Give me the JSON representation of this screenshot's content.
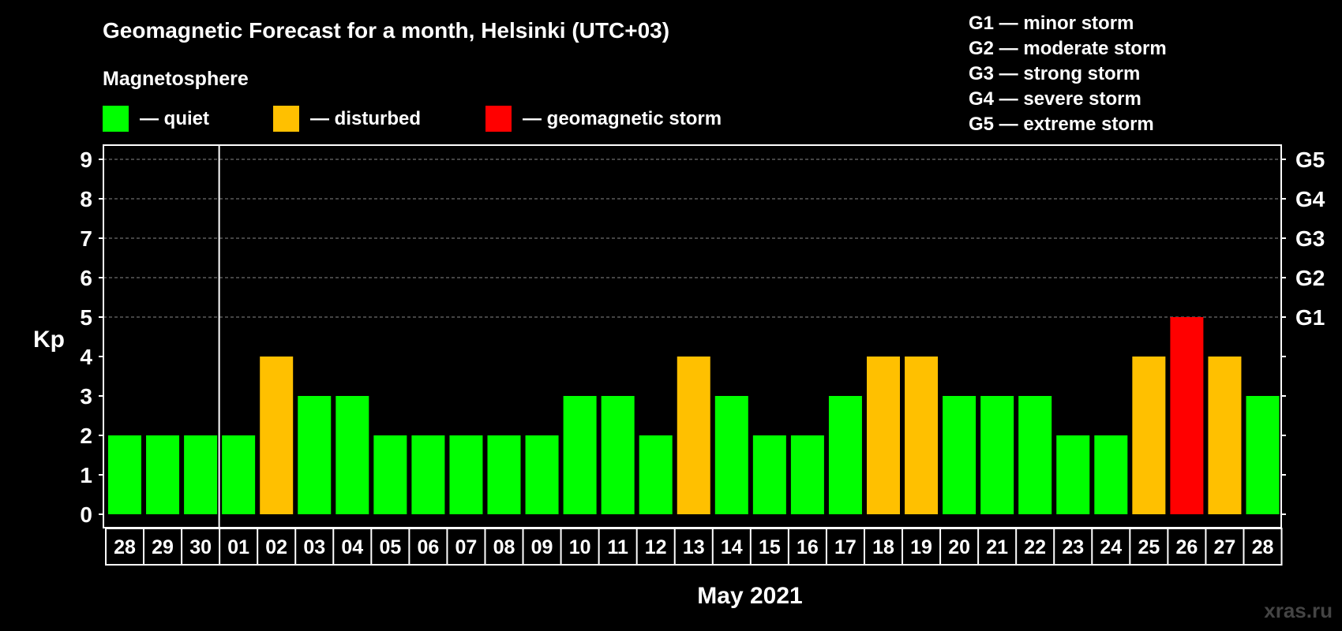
{
  "chart_data": {
    "type": "bar",
    "title": "Geomagnetic Forecast for a month, Helsinki (UTC+03)",
    "subtitle": "Magnetosphere",
    "legend": [
      {
        "label": "— quiet",
        "color": "#00ff00"
      },
      {
        "label": "— disturbed",
        "color": "#ffc000"
      },
      {
        "label": "— geomagnetic storm",
        "color": "#ff0000"
      }
    ],
    "storm_scale": [
      "G1 — minor storm",
      "G2 — moderate storm",
      "G3 — strong storm",
      "G4 — severe storm",
      "G5 — extreme storm"
    ],
    "ylabel": "Kp",
    "xlabel": "May 2021",
    "ylim": [
      0,
      9
    ],
    "yticks": [
      0,
      1,
      2,
      3,
      4,
      5,
      6,
      7,
      8,
      9
    ],
    "right_axis_labels": [
      {
        "kp": 5,
        "label": "G1"
      },
      {
        "kp": 6,
        "label": "G2"
      },
      {
        "kp": 7,
        "label": "G3"
      },
      {
        "kp": 8,
        "label": "G4"
      },
      {
        "kp": 9,
        "label": "G5"
      }
    ],
    "grid": "dashed horizontal at Kp 5-9",
    "month_separator_after_index": 2,
    "categories": [
      "28",
      "29",
      "30",
      "01",
      "02",
      "03",
      "04",
      "05",
      "06",
      "07",
      "08",
      "09",
      "10",
      "11",
      "12",
      "13",
      "14",
      "15",
      "16",
      "17",
      "18",
      "19",
      "20",
      "21",
      "22",
      "23",
      "24",
      "25",
      "26",
      "27",
      "28"
    ],
    "values": [
      2,
      2,
      2,
      2,
      4,
      3,
      3,
      2,
      2,
      2,
      2,
      2,
      3,
      3,
      2,
      4,
      3,
      2,
      2,
      3,
      4,
      4,
      3,
      3,
      3,
      2,
      2,
      4,
      5,
      4,
      3
    ],
    "color_rule": {
      "quiet_max": 3,
      "disturbed": 4,
      "storm_min": 5
    },
    "colors": {
      "quiet": "#00ff00",
      "disturbed": "#ffc000",
      "storm": "#ff0000",
      "grid": "#888888",
      "frame": "#ffffff"
    }
  },
  "watermark": "xras.ru"
}
